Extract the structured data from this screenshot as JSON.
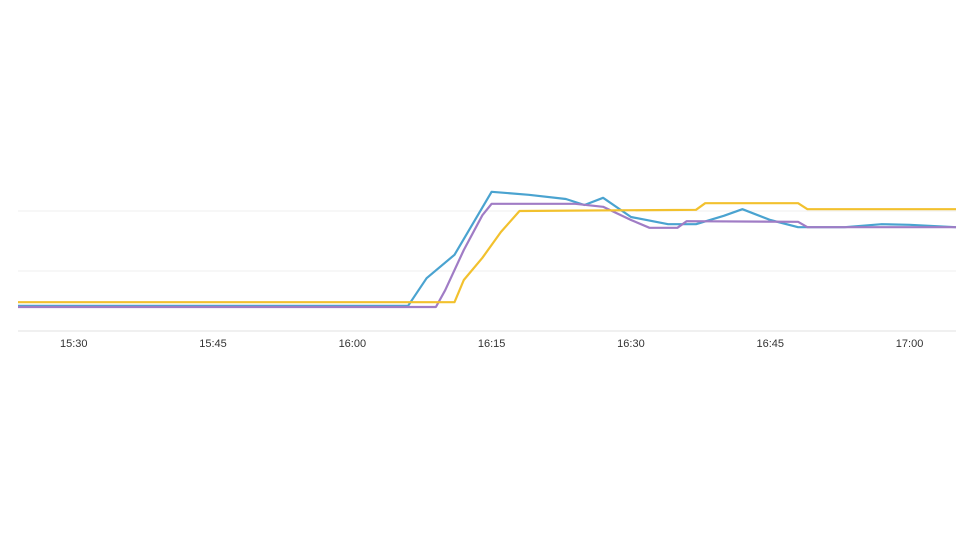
{
  "chart_data": {
    "type": "line",
    "xlim": [
      "15:24",
      "17:05"
    ],
    "xticks": [
      "15:30",
      "15:45",
      "16:00",
      "16:15",
      "16:30",
      "16:45",
      "17:00"
    ],
    "ylim": [
      0,
      3
    ],
    "ygrid": [
      0,
      1,
      2
    ],
    "series": [
      {
        "color": "#4aa3d0",
        "x": [
          "15:24",
          "16:06",
          "16:08",
          "16:11",
          "16:15",
          "16:19",
          "16:23",
          "16:25",
          "16:27",
          "16:30",
          "16:34",
          "16:37",
          "16:40",
          "16:42",
          "16:45",
          "16:48",
          "16:53",
          "16:57",
          "17:00",
          "17:05"
        ],
        "values": [
          0.42,
          0.42,
          0.88,
          1.27,
          2.32,
          2.27,
          2.2,
          2.1,
          2.22,
          1.9,
          1.78,
          1.78,
          1.92,
          2.03,
          1.85,
          1.73,
          1.73,
          1.78,
          1.77,
          1.73
        ]
      },
      {
        "color": "#a07cc5",
        "x": [
          "15:24",
          "16:09",
          "16:10",
          "16:12",
          "16:14",
          "16:15",
          "16:24",
          "16:27",
          "16:30",
          "16:32",
          "16:35",
          "16:36",
          "16:48",
          "16:49",
          "17:05"
        ],
        "values": [
          0.4,
          0.4,
          0.68,
          1.35,
          1.93,
          2.12,
          2.12,
          2.07,
          1.85,
          1.72,
          1.72,
          1.83,
          1.82,
          1.73,
          1.73
        ]
      },
      {
        "color": "#f2c12e",
        "x": [
          "15:24",
          "16:11",
          "16:12",
          "16:14",
          "16:16",
          "16:18",
          "16:37",
          "16:38",
          "16:48",
          "16:49",
          "17:05"
        ],
        "values": [
          0.48,
          0.48,
          0.85,
          1.22,
          1.65,
          2.0,
          2.02,
          2.13,
          2.13,
          2.03,
          2.03
        ]
      }
    ]
  }
}
